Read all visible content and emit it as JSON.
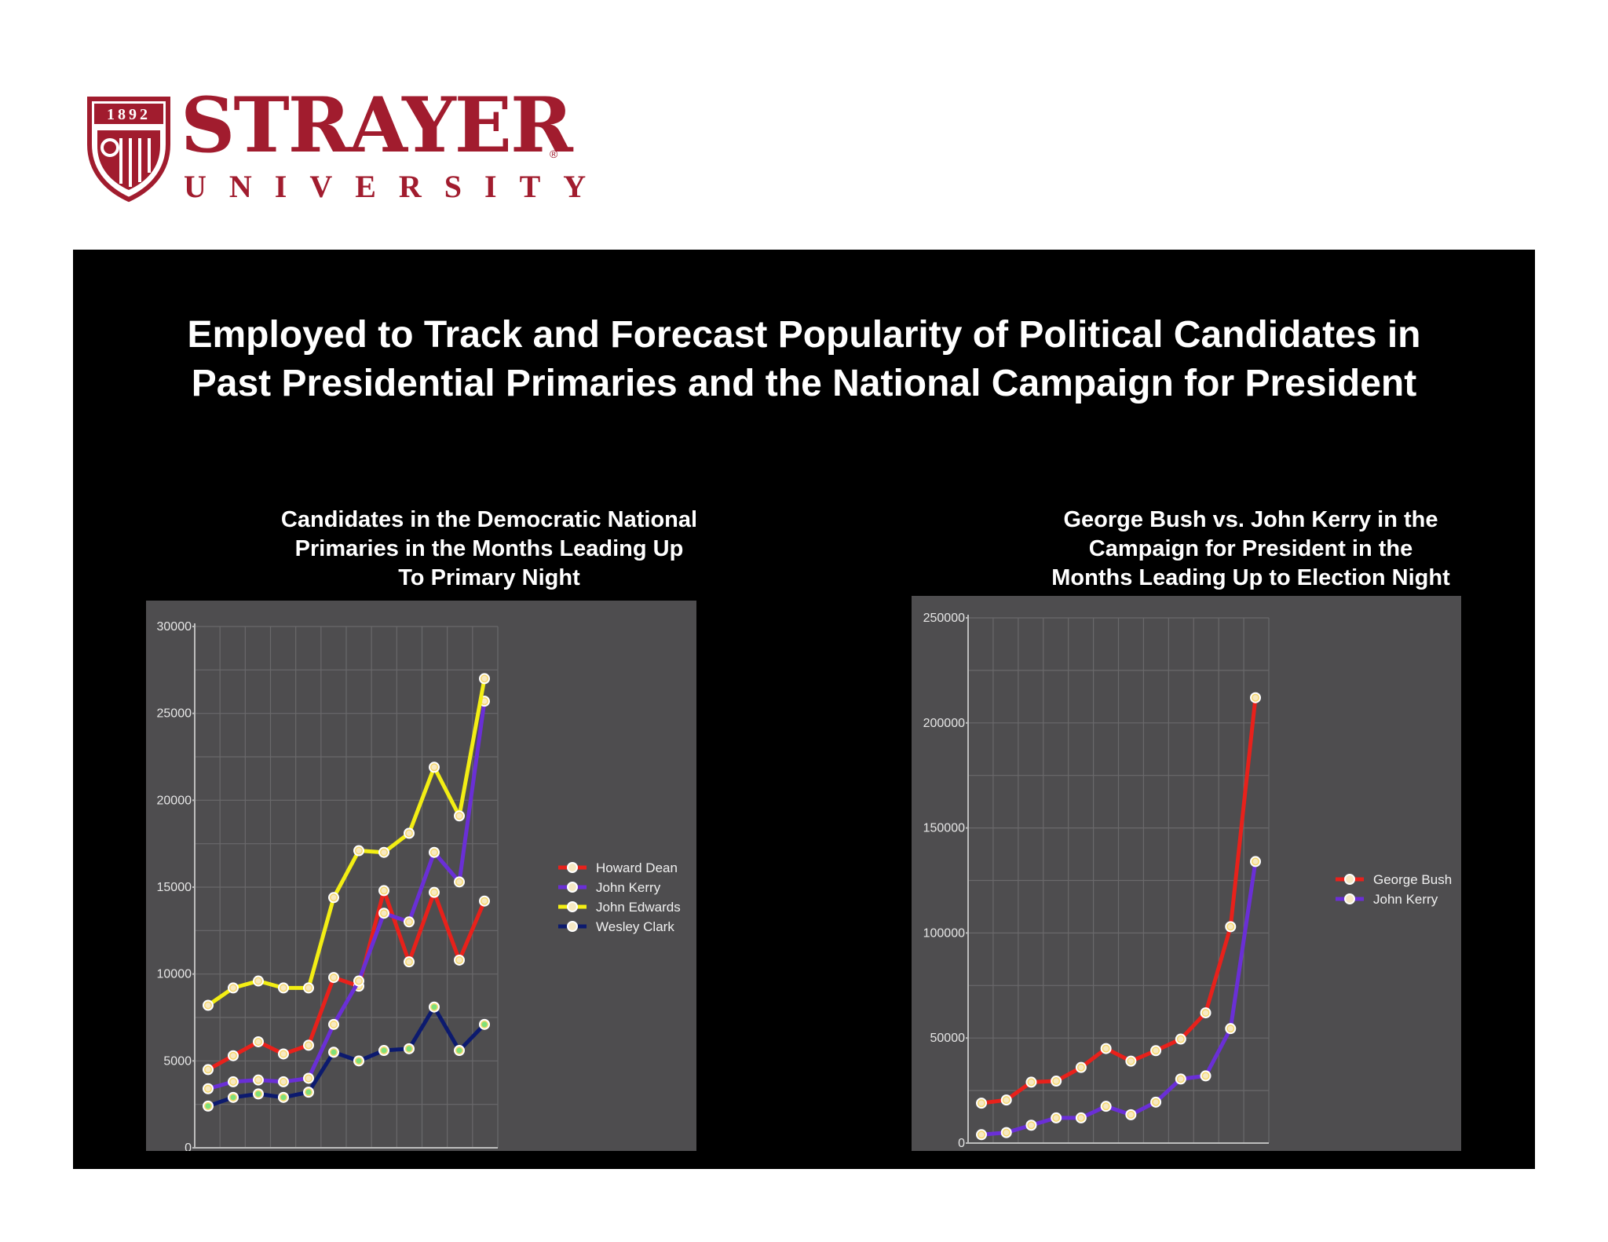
{
  "logo": {
    "year": "1892",
    "name": "STRAYER",
    "registered": "®",
    "subtitle": "UNIVERSITY",
    "color": "#a11c2e"
  },
  "slide": {
    "title_line1": "Employed to Track and Forecast Popularity of Political Candidates in",
    "title_line2": "Past Presidential Primaries and the National Campaign for President"
  },
  "chart_data": [
    {
      "type": "line",
      "title_lines": [
        "Candidates in the Democratic National",
        "Primaries in the Months Leading Up",
        "To Primary Night"
      ],
      "ylim": [
        0,
        30000
      ],
      "yticks": [
        0,
        5000,
        10000,
        15000,
        20000,
        25000,
        30000
      ],
      "x": [
        1,
        2,
        3,
        4,
        5,
        6,
        7,
        8,
        9,
        10,
        11,
        12
      ],
      "grid": true,
      "legend_position": "right",
      "series": [
        {
          "name": "Howard Dean",
          "color": "#e8211b",
          "values": [
            4500,
            5300,
            6100,
            5400,
            5900,
            9800,
            9300,
            14800,
            10700,
            14700,
            10800,
            14200
          ]
        },
        {
          "name": "John Kerry",
          "color": "#6a2fd6",
          "values": [
            3400,
            3800,
            3900,
            3800,
            4000,
            7100,
            9600,
            13500,
            13000,
            17000,
            15300,
            25700
          ]
        },
        {
          "name": "John Edwards",
          "color": "#f3ee14",
          "values": [
            8200,
            9200,
            9600,
            9200,
            9200,
            14400,
            17100,
            17000,
            18100,
            21900,
            19100,
            27000
          ]
        },
        {
          "name": "Wesley Clark",
          "color": "#0c1a6e",
          "values": [
            2400,
            2900,
            3100,
            2900,
            3200,
            5500,
            5000,
            5600,
            5700,
            8100,
            5600,
            7100
          ]
        }
      ]
    },
    {
      "type": "line",
      "title_lines": [
        "George Bush vs. John Kerry in the",
        "Campaign for President in the",
        "Months Leading Up to Election Night"
      ],
      "ylim": [
        0,
        250000
      ],
      "yticks": [
        0,
        50000,
        100000,
        150000,
        200000,
        250000
      ],
      "x": [
        1,
        2,
        3,
        4,
        5,
        6,
        7,
        8,
        9,
        10,
        11,
        12
      ],
      "grid": true,
      "legend_position": "right",
      "series": [
        {
          "name": "George Bush",
          "color": "#e8211b",
          "values": [
            19000,
            20500,
            29000,
            29500,
            36000,
            45000,
            39000,
            44000,
            49500,
            62000,
            103000,
            212000
          ]
        },
        {
          "name": "John Kerry",
          "color": "#6a2fd6",
          "values": [
            4000,
            5000,
            8500,
            12000,
            12000,
            17500,
            13500,
            19500,
            30500,
            32000,
            54500,
            134000
          ]
        }
      ]
    }
  ]
}
